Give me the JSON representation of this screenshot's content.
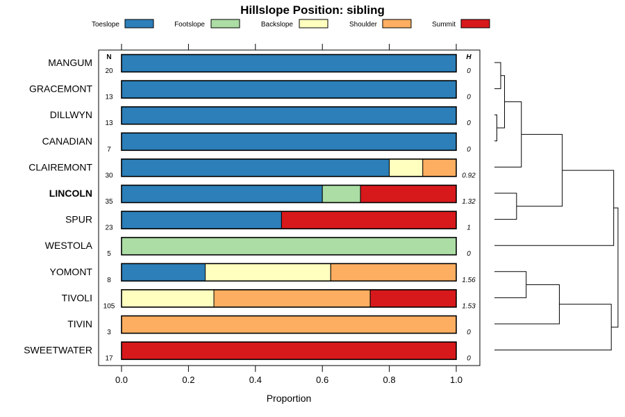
{
  "chart_data": {
    "type": "bar",
    "stacked": true,
    "orientation": "horizontal",
    "title": "Hillslope Position: sibling",
    "xlabel": "Proportion",
    "xlim": [
      0,
      1
    ],
    "xticks": [
      "0.0",
      "0.2",
      "0.4",
      "0.6",
      "0.8",
      "1.0"
    ],
    "n_header": "N",
    "h_header": "H",
    "legend": [
      {
        "name": "Toeslope",
        "color": "#2c7fb8"
      },
      {
        "name": "Footslope",
        "color": "#abdda4"
      },
      {
        "name": "Backslope",
        "color": "#ffffbf"
      },
      {
        "name": "Shoulder",
        "color": "#fdae61"
      },
      {
        "name": "Summit",
        "color": "#d7191c"
      }
    ],
    "rows": [
      {
        "name": "MANGUM",
        "n": "20",
        "h": "0",
        "bold": false,
        "values": [
          1,
          0,
          0,
          0,
          0
        ]
      },
      {
        "name": "GRACEMONT",
        "n": "13",
        "h": "0",
        "bold": false,
        "values": [
          1,
          0,
          0,
          0,
          0
        ]
      },
      {
        "name": "DILLWYN",
        "n": "13",
        "h": "0",
        "bold": false,
        "values": [
          1,
          0,
          0,
          0,
          0
        ]
      },
      {
        "name": "CANADIAN",
        "n": "7",
        "h": "0",
        "bold": false,
        "values": [
          1,
          0,
          0,
          0,
          0
        ]
      },
      {
        "name": "CLAIREMONT",
        "n": "30",
        "h": "0.92",
        "bold": false,
        "values": [
          0.8,
          0,
          0.1,
          0.1,
          0
        ]
      },
      {
        "name": "LINCOLN",
        "n": "35",
        "h": "1.32",
        "bold": true,
        "values": [
          0.6,
          0.114,
          0,
          0,
          0.286
        ]
      },
      {
        "name": "SPUR",
        "n": "23",
        "h": "1",
        "bold": false,
        "values": [
          0.478,
          0,
          0,
          0,
          0.522
        ]
      },
      {
        "name": "WESTOLA",
        "n": "5",
        "h": "0",
        "bold": false,
        "values": [
          0,
          1,
          0,
          0,
          0
        ]
      },
      {
        "name": "YOMONT",
        "n": "8",
        "h": "1.56",
        "bold": false,
        "values": [
          0.25,
          0,
          0.375,
          0.375,
          0
        ]
      },
      {
        "name": "TIVOLI",
        "n": "105",
        "h": "1.53",
        "bold": false,
        "values": [
          0,
          0,
          0.276,
          0.467,
          0.257
        ]
      },
      {
        "name": "TIVIN",
        "n": "3",
        "h": "0",
        "bold": false,
        "values": [
          0,
          0,
          0,
          1,
          0
        ]
      },
      {
        "name": "SWEETWATER",
        "n": "17",
        "h": "0",
        "bold": false,
        "values": [
          0,
          0,
          0,
          0,
          1
        ]
      }
    ],
    "dendrogram": {
      "merges": [
        [
          0,
          1,
          0.13
        ],
        [
          2,
          3,
          0.05
        ],
        [
          12,
          13,
          0.21
        ],
        [
          5,
          6,
          0.46
        ],
        [
          4,
          14,
          0.56
        ],
        [
          8,
          9,
          0.66
        ],
        [
          16,
          15,
          1.41
        ],
        [
          10,
          17,
          1.35
        ],
        [
          18,
          7,
          2.48
        ],
        [
          19,
          11,
          2.43
        ],
        [
          20,
          21,
          2.57
        ]
      ],
      "max_height": 2.6
    }
  }
}
